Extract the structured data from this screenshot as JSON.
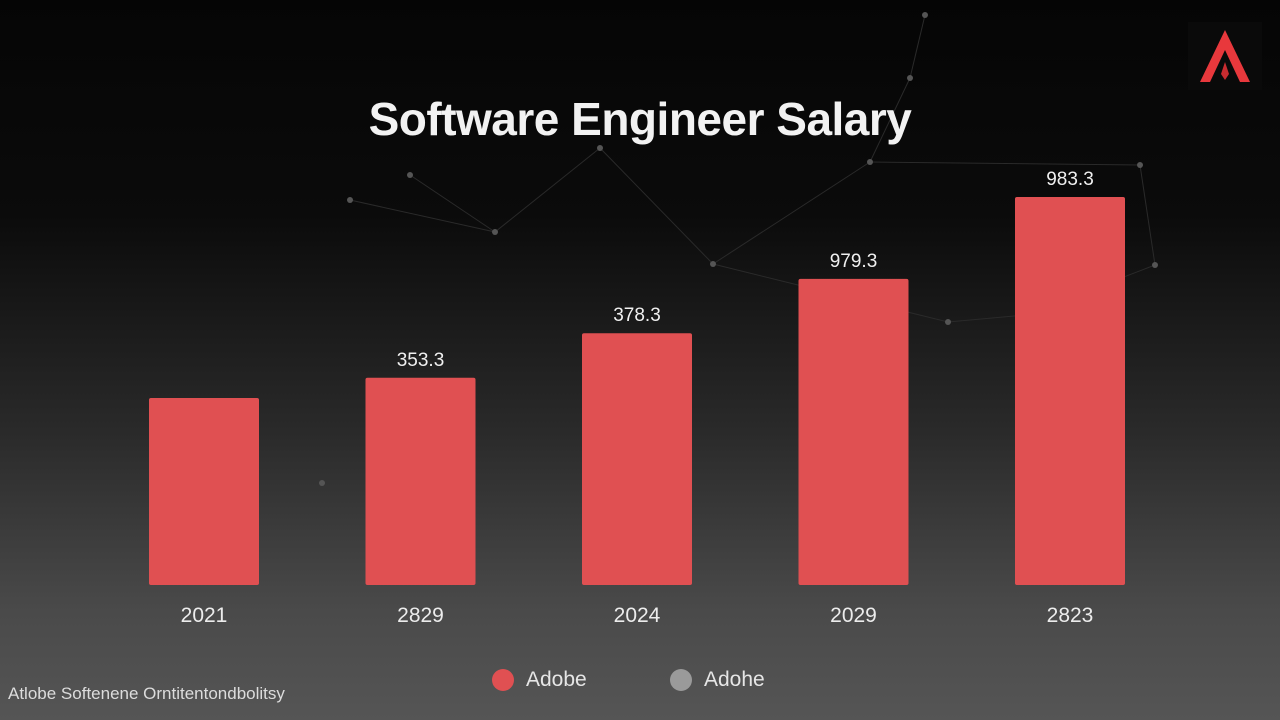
{
  "chart_data": {
    "type": "bar",
    "title": "Software Engineer Salary",
    "categories": [
      "2021",
      "2829",
      "2024",
      "2029",
      "2823"
    ],
    "values": [
      48.2,
      53.4,
      64.9,
      78.9,
      100
    ],
    "data_labels": [
      "",
      "353.3",
      "378.3",
      "979.3",
      "983.3"
    ],
    "bar_color": "#e05052",
    "legend": [
      {
        "label": "Adobe",
        "color": "#e05052"
      },
      {
        "label": "Adohe",
        "color": "#9a9a9a"
      }
    ],
    "legend_placement": "bottom",
    "grid": false
  },
  "footer": "Atlobe Softenene Orntitentondbolitsy",
  "logo": {
    "color": "#e8383c"
  }
}
